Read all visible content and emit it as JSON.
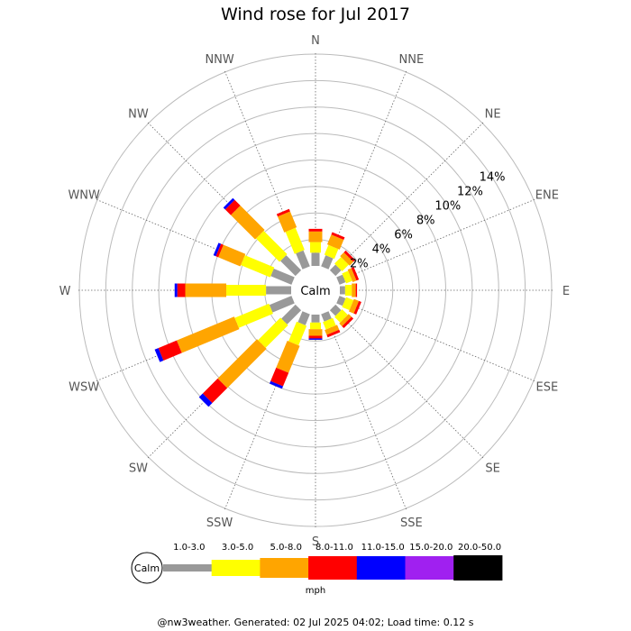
{
  "title": "Wind rose for Jul 2017",
  "footer": "@nw3weather.  Generated: 02 Jul 2025 04:02; Load time: 0.12 s",
  "calm_label": "Calm",
  "legend": {
    "unit": "mph",
    "calm_label": "Calm",
    "bands": [
      {
        "label": "1.0-3.0",
        "color": "#999999"
      },
      {
        "label": "3.0-5.0",
        "color": "#ffff00"
      },
      {
        "label": "5.0-8.0",
        "color": "#ffa500"
      },
      {
        "label": "8.0-11.0",
        "color": "#ff0000"
      },
      {
        "label": "11.0-15.0",
        "color": "#0000ff"
      },
      {
        "label": "15.0-20.0",
        "color": "#a020f0"
      },
      {
        "label": "20.0-50.0",
        "color": "#000000"
      }
    ]
  },
  "chart_data": {
    "type": "wind-rose",
    "title": "Wind rose for Jul 2017",
    "unit": "mph",
    "center_label": "Calm",
    "radial_axis": {
      "unit": "%",
      "ticks": [
        2,
        4,
        6,
        8,
        10,
        12,
        14
      ],
      "tick_labels": [
        "2%",
        "4%",
        "6%",
        "8%",
        "10%",
        "12%",
        "14%"
      ],
      "max": 16
    },
    "directions": [
      "N",
      "NNE",
      "NE",
      "ENE",
      "E",
      "ESE",
      "SE",
      "SSE",
      "S",
      "SSW",
      "SW",
      "WSW",
      "W",
      "WNW",
      "NW",
      "NNW"
    ],
    "speed_bands": [
      "1.0-3.0",
      "3.0-5.0",
      "5.0-8.0",
      "8.0-11.0",
      "11.0-15.0",
      "15.0-20.0",
      "20.0-50.0"
    ],
    "series": [
      {
        "name": "1.0-3.0",
        "values": [
          1.0,
          0.9,
          0.6,
          0.5,
          0.4,
          0.5,
          0.6,
          0.6,
          0.6,
          0.9,
          1.5,
          1.8,
          1.9,
          1.7,
          1.6,
          1.3
        ]
      },
      {
        "name": "3.0-5.0",
        "values": [
          0.8,
          0.8,
          0.7,
          0.5,
          0.5,
          0.6,
          0.6,
          0.6,
          0.5,
          1.6,
          2.4,
          2.8,
          3.0,
          2.4,
          2.5,
          1.8
        ]
      },
      {
        "name": "5.0-8.0",
        "values": [
          0.8,
          0.8,
          0.4,
          0.3,
          0.3,
          0.4,
          0.3,
          0.4,
          0.5,
          2.2,
          4.2,
          4.7,
          3.1,
          1.8,
          2.6,
          1.3
        ]
      },
      {
        "name": "8.0-11.0",
        "values": [
          0.2,
          0.2,
          0.2,
          0.2,
          0.1,
          0.2,
          0.2,
          0.2,
          0.2,
          1.1,
          1.6,
          1.5,
          0.6,
          0.2,
          0.6,
          0.2
        ]
      },
      {
        "name": "11.0-15.0",
        "values": [
          0,
          0,
          0,
          0,
          0,
          0,
          0,
          0,
          0.1,
          0.2,
          0.4,
          0.3,
          0.2,
          0.2,
          0.2,
          0
        ]
      },
      {
        "name": "15.0-20.0",
        "values": [
          0,
          0,
          0,
          0,
          0,
          0,
          0,
          0,
          0,
          0,
          0,
          0,
          0,
          0,
          0,
          0
        ]
      },
      {
        "name": "20.0-50.0",
        "values": [
          0,
          0,
          0,
          0,
          0,
          0,
          0,
          0,
          0,
          0,
          0,
          0,
          0,
          0,
          0,
          0
        ]
      }
    ]
  }
}
